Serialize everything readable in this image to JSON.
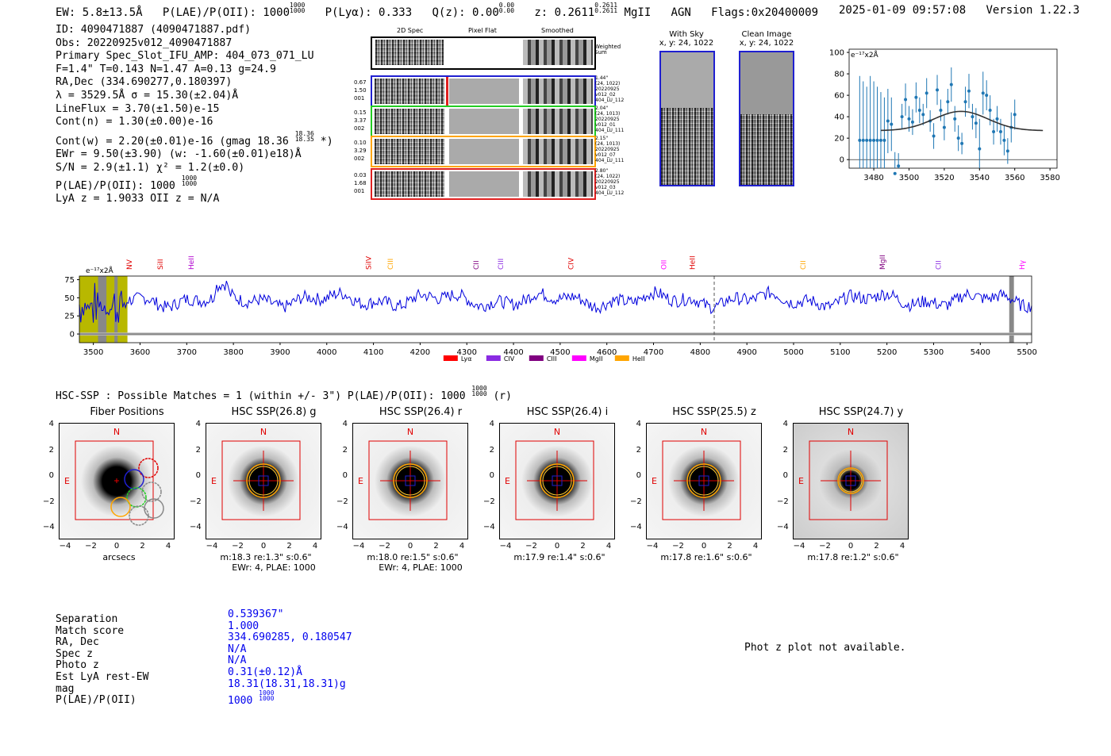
{
  "header": {
    "ew": "EW: 5.8±13.5Å",
    "plae_label": "P(LAE)/P(OII): 1000",
    "plae_hi": "1000",
    "plae_lo": "1000",
    "plya": "P(Lyα): 0.333",
    "qz_label": "Q(z): 0.00",
    "qz_hi": "0.00",
    "qz_lo": "0.00",
    "z_label": "z: 0.2611",
    "z_hi": "0.2611",
    "z_lo": "0.2611",
    "line": "MgII",
    "agn": "AGN",
    "flags": "Flags:0x20400009",
    "timestamp": "2025-01-09 09:57:08",
    "version": "Version 1.22.3"
  },
  "info": {
    "id": "ID: 4090471887 (4090471887.pdf)",
    "obs": "Obs: 20220925v012_4090471887",
    "primary": "Primary Spec_Slot_IFU_AMP: 404_073_071_LU",
    "params": "F=1.4\"  T=0.143  N=1.47  A=0.13  g=24.9",
    "radec": "RA,Dec (334.690277,0.180397)",
    "lambda": "λ = 3529.5Å   σ = 15.30(±2.04)Å",
    "lineflux": "LineFlux = 3.70(±1.50)e-15",
    "contn": "Cont(n) = 1.30(±0.00)e-16",
    "contw": "Cont(w) = 2.20(±0.01)e-16 (gmag 18.36",
    "contw_hi": "18.36",
    "contw_lo": "18.35",
    "contw_end": "*)",
    "ewr": "EWr = 9.50(±3.90) (w: -1.60(±0.01)e18)Å",
    "sn": "S/N = 2.9(±1.1)  χ² = 1.2(±0.0)",
    "plae": "P(LAE)/P(OII): 1000",
    "plae_hi": "1000",
    "plae_lo": "1000",
    "lyaz": "LyA z = 1.9033  OII z = N/A"
  },
  "cutouts": {
    "col_labels": [
      "2D Spec",
      "Pixel Flat",
      "Smoothed"
    ],
    "weighted_sum": "Weighted Sum",
    "rows": [
      {
        "left": [
          "0.67",
          "1.50",
          "001"
        ],
        "right": [
          "1.44\"",
          "(24, 1022)",
          "20220925",
          "v012_02",
          "404_LU_112"
        ],
        "color": "#1f1fd0"
      },
      {
        "left": [
          "0.15",
          "3.37",
          "002"
        ],
        "right": [
          "2.04\"",
          "(24, 1013)",
          "20220925",
          "v012_01",
          "404_LU_111"
        ],
        "color": "#22cc22"
      },
      {
        "left": [
          "0.10",
          "3.29",
          "002"
        ],
        "right": [
          "2.15\"",
          "(24, 1013)",
          "20220925",
          "v012_07",
          "404_LU_111"
        ],
        "color": "#ffa500"
      },
      {
        "left": [
          "0.03",
          "1.68",
          "001"
        ],
        "right": [
          "2.80\"",
          "(24, 1022)",
          "20220925",
          "v012_03",
          "404_LU_112"
        ],
        "color": "#e02020"
      }
    ]
  },
  "sky": {
    "with_sky": "With Sky",
    "with_sky_xy": "x, y: 24, 1022",
    "clean": "Clean Image",
    "clean_xy": "x, y: 24, 1022"
  },
  "zoom_plot": {
    "scale_label": "e⁻¹⁷x2Å",
    "yticks": [
      "100",
      "80",
      "60",
      "40",
      "20",
      "0"
    ],
    "xticks": [
      "3480",
      "3500",
      "3520",
      "3540",
      "3560",
      "3580"
    ],
    "xlim": [
      3466,
      3584
    ],
    "ylim": [
      -8,
      103
    ],
    "points": [
      {
        "x": 3472,
        "y": 18,
        "e": 60
      },
      {
        "x": 3474,
        "y": 18,
        "e": 55
      },
      {
        "x": 3476,
        "y": 18,
        "e": 50
      },
      {
        "x": 3478,
        "y": 18,
        "e": 60
      },
      {
        "x": 3480,
        "y": 18,
        "e": 55
      },
      {
        "x": 3482,
        "y": 18,
        "e": 50
      },
      {
        "x": 3484,
        "y": 18,
        "e": 45
      },
      {
        "x": 3486,
        "y": 18,
        "e": 40
      },
      {
        "x": 3488,
        "y": 36,
        "e": 30
      },
      {
        "x": 3490,
        "y": 33,
        "e": 25
      },
      {
        "x": 3492,
        "y": -13,
        "e": 20
      },
      {
        "x": 3494,
        "y": -6,
        "e": 12
      },
      {
        "x": 3496,
        "y": 40,
        "e": 12
      },
      {
        "x": 3498,
        "y": 56,
        "e": 15
      },
      {
        "x": 3500,
        "y": 38,
        "e": 12
      },
      {
        "x": 3502,
        "y": 35,
        "e": 12
      },
      {
        "x": 3504,
        "y": 58,
        "e": 14
      },
      {
        "x": 3506,
        "y": 46,
        "e": 12
      },
      {
        "x": 3508,
        "y": 42,
        "e": 10
      },
      {
        "x": 3510,
        "y": 62,
        "e": 14
      },
      {
        "x": 3512,
        "y": 36,
        "e": 10
      },
      {
        "x": 3514,
        "y": 22,
        "e": 12
      },
      {
        "x": 3516,
        "y": 65,
        "e": 14
      },
      {
        "x": 3518,
        "y": 46,
        "e": 10
      },
      {
        "x": 3520,
        "y": 30,
        "e": 12
      },
      {
        "x": 3522,
        "y": 54,
        "e": 12
      },
      {
        "x": 3524,
        "y": 70,
        "e": 16
      },
      {
        "x": 3526,
        "y": 38,
        "e": 12
      },
      {
        "x": 3528,
        "y": 20,
        "e": 12
      },
      {
        "x": 3530,
        "y": 15,
        "e": 10
      },
      {
        "x": 3532,
        "y": 54,
        "e": 14
      },
      {
        "x": 3534,
        "y": 64,
        "e": 16
      },
      {
        "x": 3536,
        "y": 40,
        "e": 12
      },
      {
        "x": 3538,
        "y": 34,
        "e": 14
      },
      {
        "x": 3540,
        "y": 10,
        "e": 28
      },
      {
        "x": 3542,
        "y": 62,
        "e": 20
      },
      {
        "x": 3544,
        "y": 60,
        "e": 14
      },
      {
        "x": 3546,
        "y": 46,
        "e": 14
      },
      {
        "x": 3548,
        "y": 26,
        "e": 12
      },
      {
        "x": 3550,
        "y": 38,
        "e": 12
      },
      {
        "x": 3552,
        "y": 26,
        "e": 12
      },
      {
        "x": 3554,
        "y": 18,
        "e": 14
      },
      {
        "x": 3556,
        "y": 8,
        "e": 12
      },
      {
        "x": 3558,
        "y": 30,
        "e": 14
      },
      {
        "x": 3560,
        "y": 42,
        "e": 14
      }
    ]
  },
  "spectrum": {
    "scale_label": "e⁻¹⁷x2Å",
    "xlim": [
      3470,
      5510
    ],
    "ylim": [
      -12,
      80
    ],
    "yticks": [
      "75",
      "50",
      "25",
      "0"
    ],
    "xticks": [
      "3500",
      "3600",
      "3700",
      "3800",
      "3900",
      "4000",
      "4100",
      "4200",
      "4300",
      "4400",
      "4500",
      "4600",
      "4700",
      "4800",
      "4900",
      "5000",
      "5100",
      "5200",
      "5300",
      "5400",
      "5500"
    ],
    "dashed_line_x": 4830,
    "lines": [
      {
        "name": "NV",
        "x": 3577,
        "color": "#e00000"
      },
      {
        "name": "SiII",
        "x": 3643,
        "color": "#e00000"
      },
      {
        "name": "HeII",
        "x": 3710,
        "color": "#b000d0"
      },
      {
        "name": "SiIV",
        "x": 4090,
        "color": "#e00000"
      },
      {
        "name": "CIII",
        "x": 4136,
        "color": "#ffa500"
      },
      {
        "name": "CII",
        "x": 4320,
        "color": "#800080"
      },
      {
        "name": "CIII",
        "x": 4373,
        "color": "#8a2be2"
      },
      {
        "name": "CIV",
        "x": 4523,
        "color": "#e00000"
      },
      {
        "name": "OII",
        "x": 4722,
        "color": "#ff00ff"
      },
      {
        "name": "HeII",
        "x": 4783,
        "color": "#e00000"
      },
      {
        "name": "CII",
        "x": 5020,
        "color": "#ffa500"
      },
      {
        "name": "MgII",
        "x": 5190,
        "color": "#800080"
      },
      {
        "name": "CII",
        "x": 5310,
        "color": "#8a2be2"
      },
      {
        "name": "Hγ",
        "x": 5490,
        "color": "#ff00ff"
      }
    ],
    "legend": [
      {
        "name": "Lyα",
        "color": "#ff0000"
      },
      {
        "name": "CIV",
        "color": "#8a2be2"
      },
      {
        "name": "CIII",
        "color": "#800080"
      },
      {
        "name": "MgII",
        "color": "#ff00ff"
      },
      {
        "name": "HeII",
        "color": "#ffa500"
      }
    ]
  },
  "hsc": {
    "title": "HSC-SSP : Possible Matches = 1 (within +/- 3\")  P(LAE)/P(OII): 1000",
    "title_hi": "1000",
    "title_lo": "1000",
    "title_end": "(r)",
    "panels": [
      {
        "title": "Fiber Positions",
        "xlabel": "arcsecs",
        "line2": ""
      },
      {
        "title": "HSC SSP(26.8) g",
        "xlabel": "m:18.3  re:1.3\"  s:0.6\"",
        "line2": "EWr: 4, PLAE: 1000"
      },
      {
        "title": "HSC SSP(26.4) r",
        "xlabel": "m:18.0  re:1.5\"  s:0.6\"",
        "line2": "EWr: 4, PLAE: 1000"
      },
      {
        "title": "HSC SSP(26.4) i",
        "xlabel": "m:17.9  re:1.4\"  s:0.6\"",
        "line2": ""
      },
      {
        "title": "HSC SSP(25.5) z",
        "xlabel": "m:17.8  re:1.6\"  s:0.6\"",
        "line2": ""
      },
      {
        "title": "HSC SSP(24.7) y",
        "xlabel": "m:17.8  re:1.2\"  s:0.6\"",
        "line2": ""
      }
    ],
    "yticks": [
      "4",
      "2",
      "0",
      "−2",
      "−4"
    ],
    "xticks": [
      "−4",
      "−2",
      "0",
      "2",
      "4"
    ],
    "north": "N",
    "east": "E"
  },
  "match_table": {
    "labels": [
      "Separation",
      "Match score",
      "RA, Dec",
      "Spec z",
      "Photo z",
      "Est LyA rest-EW",
      "mag",
      "P(LAE)/P(OII)"
    ],
    "values": [
      "0.539367\"",
      "1.000",
      "334.690285, 0.180547",
      "N/A",
      "N/A",
      "0.31(±0.12)Å",
      "18.31(18.31,18.31)g",
      "1000"
    ],
    "plae_hi": "1000",
    "plae_lo": "1000"
  },
  "photz_note": "Phot z plot not available."
}
